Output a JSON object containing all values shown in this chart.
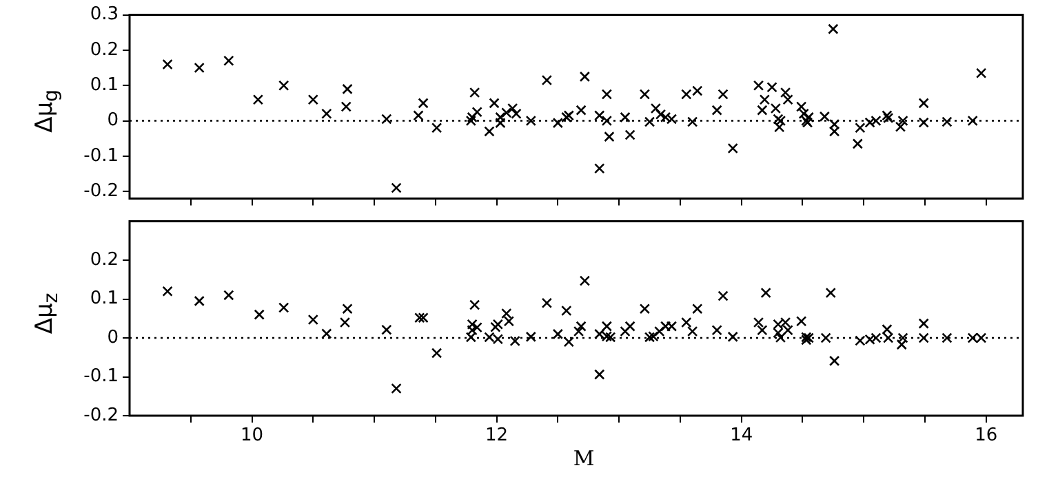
{
  "chart_data": [
    {
      "type": "scatter",
      "ylabel": "Δμ$_{g}$",
      "color": "#000000",
      "marker": "cross",
      "tick_labels": "y",
      "xlim": [
        9,
        16.3
      ],
      "ylim": [
        -0.22,
        0.3
      ],
      "xticks": [
        {
          "value": 9.5,
          "label": null
        },
        {
          "value": 10,
          "label": null
        },
        {
          "value": 10.5,
          "label": null
        },
        {
          "value": 11,
          "label": null
        },
        {
          "value": 11.5,
          "label": null
        },
        {
          "value": 12,
          "label": null
        },
        {
          "value": 12.5,
          "label": null
        },
        {
          "value": 13,
          "label": null
        },
        {
          "value": 13.5,
          "label": null
        },
        {
          "value": 14,
          "label": null
        },
        {
          "value": 14.5,
          "label": null
        },
        {
          "value": 15,
          "label": null
        },
        {
          "value": 15.5,
          "label": null
        },
        {
          "value": 16,
          "label": null
        }
      ],
      "yticks": [
        -0.2,
        -0.1,
        0,
        0.1,
        0.2,
        0.3
      ],
      "ref_lines": [
        {
          "axis": "y",
          "value": 0,
          "line_style": "dotted"
        }
      ],
      "x": [
        9.31,
        9.57,
        9.81,
        10.05,
        10.26,
        10.5,
        10.61,
        10.77,
        10.78,
        11.1,
        11.18,
        11.36,
        11.4,
        11.51,
        11.79,
        11.82,
        11.84,
        11.8,
        11.94,
        11.98,
        12.03,
        12.03,
        12.08,
        12.13,
        12.16,
        12.28,
        12.41,
        12.5,
        12.57,
        12.59,
        12.69,
        12.72,
        12.84,
        12.84,
        12.9,
        12.9,
        12.92,
        13.05,
        13.09,
        13.21,
        13.25,
        13.3,
        13.34,
        13.38,
        13.43,
        13.55,
        13.6,
        13.64,
        13.8,
        13.85,
        13.93,
        14.14,
        14.17,
        14.19,
        14.25,
        14.28,
        14.3,
        14.31,
        14.32,
        14.36,
        14.38,
        14.49,
        14.51,
        14.53,
        14.55,
        14.54,
        14.68,
        14.75,
        14.76,
        14.76,
        14.95,
        14.97,
        15.05,
        15.1,
        15.19,
        15.2,
        15.3,
        15.32,
        15.49,
        15.49,
        15.68,
        15.89,
        15.96
      ],
      "values": [
        0.16,
        0.15,
        0.17,
        0.06,
        0.1,
        0.06,
        0.02,
        0.04,
        0.09,
        0.005,
        -0.19,
        0.015,
        0.05,
        -0.02,
        0,
        0.08,
        0.025,
        0.01,
        -0.03,
        0.05,
        -0.006,
        0.01,
        0.023,
        0.035,
        0.02,
        0,
        0.115,
        -0.006,
        0.01,
        0.015,
        0.03,
        0.125,
        0.015,
        -0.135,
        0.075,
        0,
        -0.045,
        0.01,
        -0.04,
        0.075,
        -0.003,
        0.035,
        0.018,
        0.01,
        0.005,
        0.075,
        -0.003,
        0.085,
        0.03,
        0.075,
        -0.078,
        0.1,
        0.03,
        0.06,
        0.095,
        0.035,
        0.005,
        -0.018,
        0,
        0.08,
        0.06,
        0.04,
        0.02,
        0,
        0.01,
        -0.005,
        0.012,
        0.26,
        -0.01,
        -0.03,
        -0.065,
        -0.02,
        -0.005,
        0,
        0.015,
        0.008,
        -0.017,
        0,
        0.05,
        -0.005,
        -0.003,
        0,
        0.135
      ]
    },
    {
      "type": "scatter",
      "ylabel": "Δμ$_{z}$",
      "xlabel": "M",
      "color": "#000000",
      "marker": "cross",
      "xlim": [
        9,
        16.3
      ],
      "ylim": [
        -0.2,
        0.3
      ],
      "xticks": [
        {
          "value": 9.5,
          "label": null
        },
        10,
        {
          "value": 10.5,
          "label": null
        },
        {
          "value": 11,
          "label": null
        },
        {
          "value": 11.5,
          "label": null
        },
        12,
        {
          "value": 12.5,
          "label": null
        },
        {
          "value": 13,
          "label": null
        },
        {
          "value": 13.5,
          "label": null
        },
        14,
        {
          "value": 14.5,
          "label": null
        },
        {
          "value": 15,
          "label": null
        },
        {
          "value": 15.5,
          "label": null
        },
        16
      ],
      "yticks": [
        -0.2,
        -0.1,
        0,
        0.1,
        0.2
      ],
      "ref_lines": [
        {
          "axis": "y",
          "value": 0,
          "line_style": "dotted"
        }
      ],
      "x": [
        9.31,
        9.57,
        9.81,
        10.06,
        10.26,
        10.5,
        10.61,
        10.76,
        10.78,
        11.1,
        11.18,
        11.37,
        11.4,
        11.51,
        11.79,
        11.82,
        11.8,
        11.84,
        11.8,
        11.94,
        11.99,
        12.01,
        12.01,
        12.08,
        12.1,
        12.15,
        12.28,
        12.41,
        12.5,
        12.57,
        12.59,
        12.69,
        12.67,
        12.72,
        12.84,
        12.84,
        12.9,
        12.9,
        12.93,
        13.05,
        13.09,
        13.21,
        13.25,
        13.28,
        13.33,
        13.38,
        13.43,
        13.55,
        13.6,
        13.64,
        13.8,
        13.85,
        13.93,
        14.14,
        14.17,
        14.2,
        14.3,
        14.3,
        14.32,
        14.36,
        14.38,
        14.49,
        14.53,
        14.53,
        14.55,
        14.69,
        14.73,
        14.76,
        14.97,
        15.05,
        15.1,
        15.19,
        15.2,
        15.31,
        15.32,
        15.49,
        15.49,
        15.68,
        15.89,
        15.96
      ],
      "values": [
        0.12,
        0.095,
        0.11,
        0.06,
        0.078,
        0.047,
        0.011,
        0.04,
        0.075,
        0.021,
        -0.13,
        0.052,
        0.052,
        -0.039,
        0.002,
        0.085,
        0.035,
        0.027,
        0.02,
        0.002,
        0.028,
        0.035,
        -0.003,
        0.063,
        0.043,
        -0.008,
        0.003,
        0.09,
        0.01,
        0.07,
        -0.01,
        0.03,
        0.017,
        0.147,
        -0.094,
        0.01,
        0.03,
        0.004,
        0.002,
        0.017,
        0.03,
        0.075,
        0.002,
        0.004,
        0.017,
        0.03,
        0.03,
        0.04,
        0.017,
        0.075,
        0.02,
        0.108,
        0.003,
        0.04,
        0.02,
        0.116,
        0.035,
        0.013,
        0.001,
        0.04,
        0.02,
        0.043,
        0.002,
        -0.005,
        0,
        0,
        0.116,
        -0.059,
        -0.007,
        -0.004,
        0,
        0.022,
        0,
        -0.017,
        0,
        0.037,
        0,
        0,
        0,
        0
      ]
    }
  ]
}
